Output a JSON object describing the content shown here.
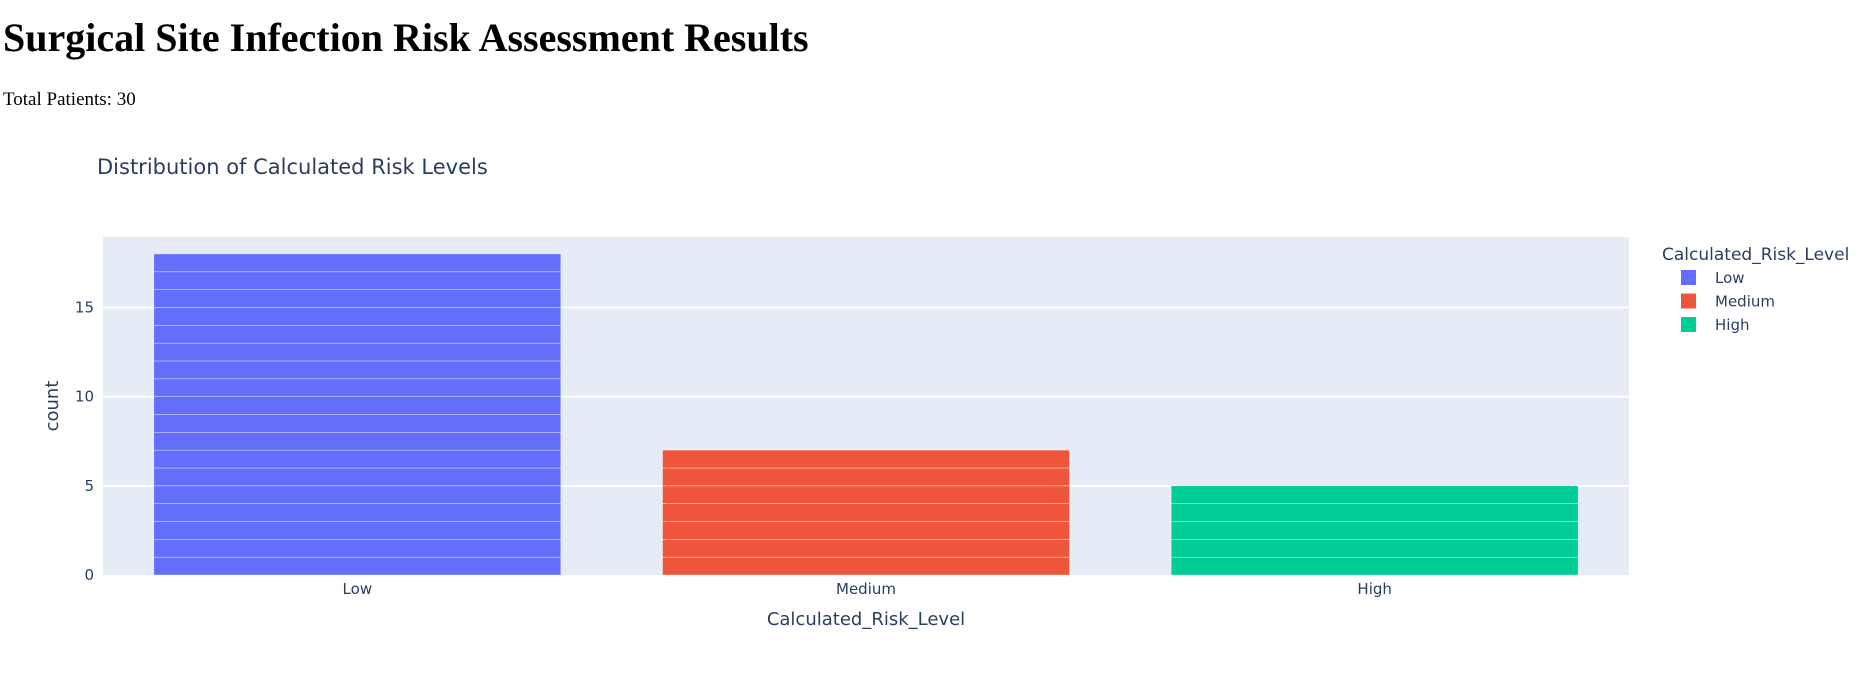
{
  "page": {
    "title": "Surgical Site Infection Risk Assessment Results",
    "summary": "Total Patients: 30"
  },
  "chart_data": {
    "type": "bar",
    "title": "Distribution of Calculated Risk Levels",
    "xlabel": "Calculated_Risk_Level",
    "ylabel": "count",
    "categories": [
      "Low",
      "Medium",
      "High"
    ],
    "values": [
      18,
      7,
      5
    ],
    "ylim": [
      0,
      18.95
    ],
    "yticks": [
      0,
      5,
      10,
      15
    ],
    "grid": true,
    "legend": {
      "title": "Calculated_Risk_Level",
      "placement": "right",
      "items": [
        "Low",
        "Medium",
        "High"
      ]
    },
    "colors": [
      "#636efa",
      "#ef553b",
      "#00cc96"
    ],
    "plot_background": "#e5ecf6",
    "bar_segment_unit": 1
  }
}
